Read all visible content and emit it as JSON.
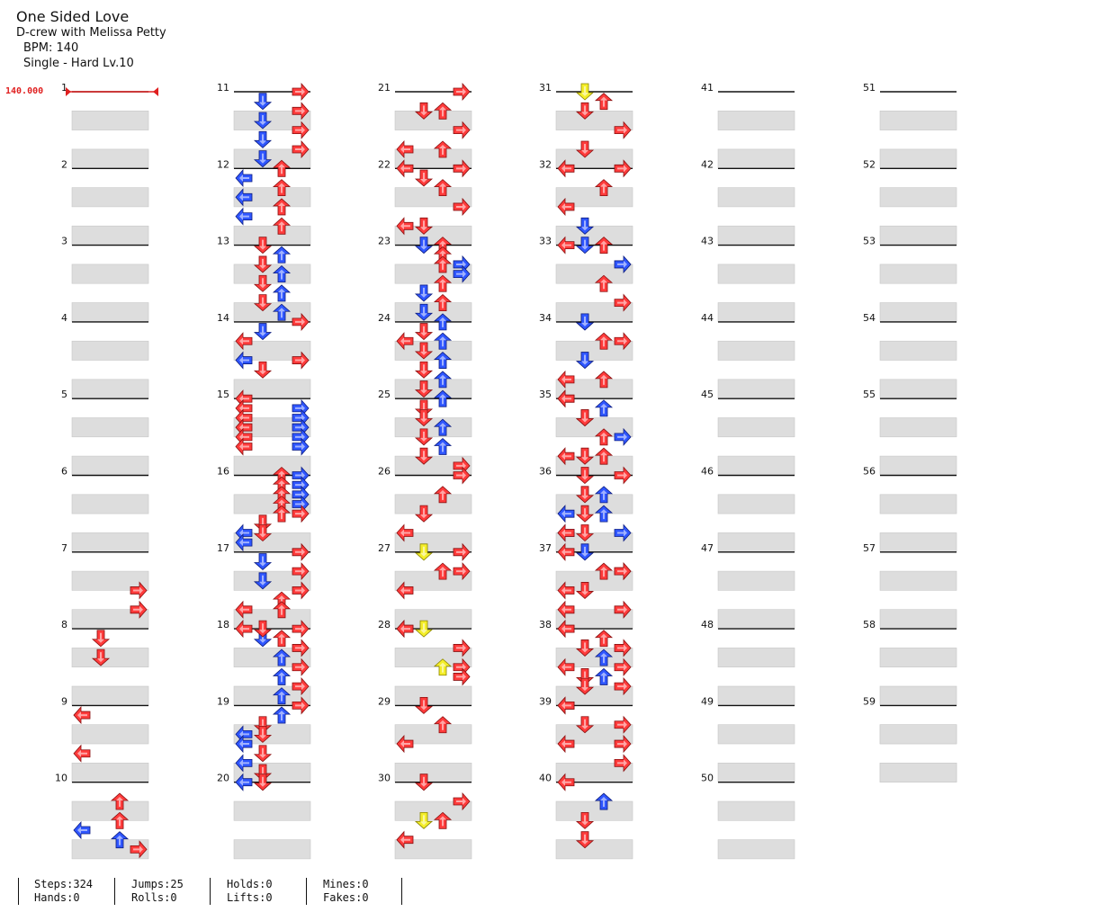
{
  "song": {
    "title": "One Sided Love",
    "artist": "D-crew with Melissa Petty",
    "bpm_text": "BPM: 140",
    "difficulty_text": "Single - Hard  Lv.10",
    "bpm_marker": "140.000"
  },
  "colors": {
    "red": "#ff3b3b",
    "blue": "#2f56ff",
    "yellow": "#f4ee2a",
    "band": "#dddddd",
    "bpm_line": "#e02020"
  },
  "stats": {
    "steps": "Steps:324",
    "jumps": "Jumps:25",
    "holds": "Holds:0",
    "mines": "Mines:0",
    "hands": "Hands:0",
    "rolls": "Rolls:0",
    "lifts": "Lifts:0",
    "fakes": "Fakes:0"
  },
  "measure_labels": [
    "1",
    "2",
    "3",
    "4",
    "5",
    "6",
    "7",
    "8",
    "9",
    "10",
    "11",
    "12",
    "13",
    "14",
    "15",
    "16",
    "17",
    "18",
    "19",
    "20",
    "21",
    "22",
    "23",
    "24",
    "25",
    "26",
    "27",
    "28",
    "29",
    "30",
    "31",
    "32",
    "33",
    "34",
    "35",
    "36",
    "37",
    "38",
    "39",
    "40",
    "41",
    "42",
    "43",
    "44",
    "45",
    "46",
    "47",
    "48",
    "49",
    "50",
    "51",
    "52",
    "53",
    "54",
    "55",
    "56",
    "57",
    "58",
    "59"
  ],
  "notes": {
    "legend": "measure:row16 lane(L/D/U/R)+color(r/b/y)",
    "data": "7:8Rr 7:12Rr 8:2Dr 8:6Dr 9:2Lr 9:10Lr 10:4Ur 10:8Ur 10:10Lb 10:12Ub 10:14Rr 11:0Rr 11:2Db 11:4Rr 11:6Db 11:8Rr 11:10Db 11:12Rr 11:14Db 12:0Ur 12:2Lb 12:4Ur 12:6Lb 12:8Ur 12:10Lb 12:12Ur 13:0Dr 13:2Ub 13:4Dr 13:6Ub 13:8Dr 13:10Ub 13:12Dr 13:14Ub 14:0Rr 14:2Db 14:4Lr 14:8Lb 14:8Rr 14:10Dr 15:0Lr 15:2Lr 15:2Rb 15:4Lr 15:4Rb 15:6Lr 15:6Rb 15:8Lr 15:8Rb 15:10Lr 15:10Rb 16:0Ur 16:0Rb 16:2Ur 16:2Rb 16:4Ur 16:4Rb 16:6Ur 16:6Rb 16:8Ur 16:8Rr 16:10Dr 16:12Lb 16:12Dr 16:14Lb 17:0Rr 17:2Db 17:4Rr 17:6Db 17:8Rr 17:10Ur 17:12Lr 17:12Ur 17:16Rr 17:18Db 18:0Lr 18:0Dr 18:2Ur 18:4Rr 18:6Ub 18:8Rr 18:10Ub 18:12Rr 18:14Ub 19:0Rr 19:2Ub 19:4Dr 19:6Lb 19:6Dr 19:8Lb 19:10Dr 19:12Lb 19:14Dr 20:0Lb 20:0Dr 21:0Rr 21:4Dr 21:4Ur 21:8Rr 21:12Lr 21:12Ur 21:16Rr 21:18Dr 22:0Lr 22:4Ur 22:8Rr 22:12Lr 22:12Dr 22:16Ur 22:20Rb 23:0Db 23:2Ur 23:4Ur 23:6Rb 23:8Ur 23:10Db 23:12Ur 23:14Db 24:0Ub 24:2Dr 24:4Lr 24:4Ub 24:6Dr 24:8Ub 24:10Dr 24:12Ub 24:14Dr 25:0Ub 25:2Dr 25:4Dr 25:6Ub 25:8Dr 25:10Ub 25:12Dr 25:14Rr 26:0Rr 26:4Ur 26:8Dr 26:12Lr 26:16Rr 27:0Dy 27:4Ur 27:4Rr 27:8Lr 27:16Dy 27:16Lr 28:0Lr 28:4Rr 28:8Uy 28:8Rr 28:10Rr 29:0Dr 29:4Ur 29:8Lr 30:0Dr 30:4Rr 30:8Dy 30:8Ur 30:12Lr 31:0Dy 31:2Ur 31:4Dr 31:8Rr 31:12Dr 31:16Rr 32:0Lr 32:4Ur 32:8Lr 32:12Db 32:16Lr 32:16Db 33:0Ur 33:4Rb 33:8Ur 33:12Rr 33:16Db 33:20Rr 34:0Db 34:4Ur 34:8Db 34:12Lr 34:12Ur 34:16Lr 34:18Ub 34:20Dr 34:24Rb 34:28Dr 35:0Lr 35:4Dr 35:8Ur 35:12Lr 35:12Ur 35:16Dr 35:20Ub 35:24Lb 35:24Dr 35:28Lb 35:28Dr 36:0Rr 36:4Dr 36:8Ub 36:12Lr 36:12Rb 36:16Db 36:20Ur 36:20Rr 37:0Lr 37:4Rr 37:8Lr 37:8Dr 37:12Lr 37:12Rr 37:16Lr 37:18Ur 37:20Rr 37:22Ub 37:24Rr 37:26Dr 37:28Rr 38:0Lr 38:4Dr 38:8Lr 38:10Ub 38:12Dr 38:16Lr 38:20Rr 38:24Rr 39:0Lr 39:4Dr 39:8Lr 39:12Rr 39:16Lr 39:20Ub 39:24Dr 39:28Dr"
  }
}
